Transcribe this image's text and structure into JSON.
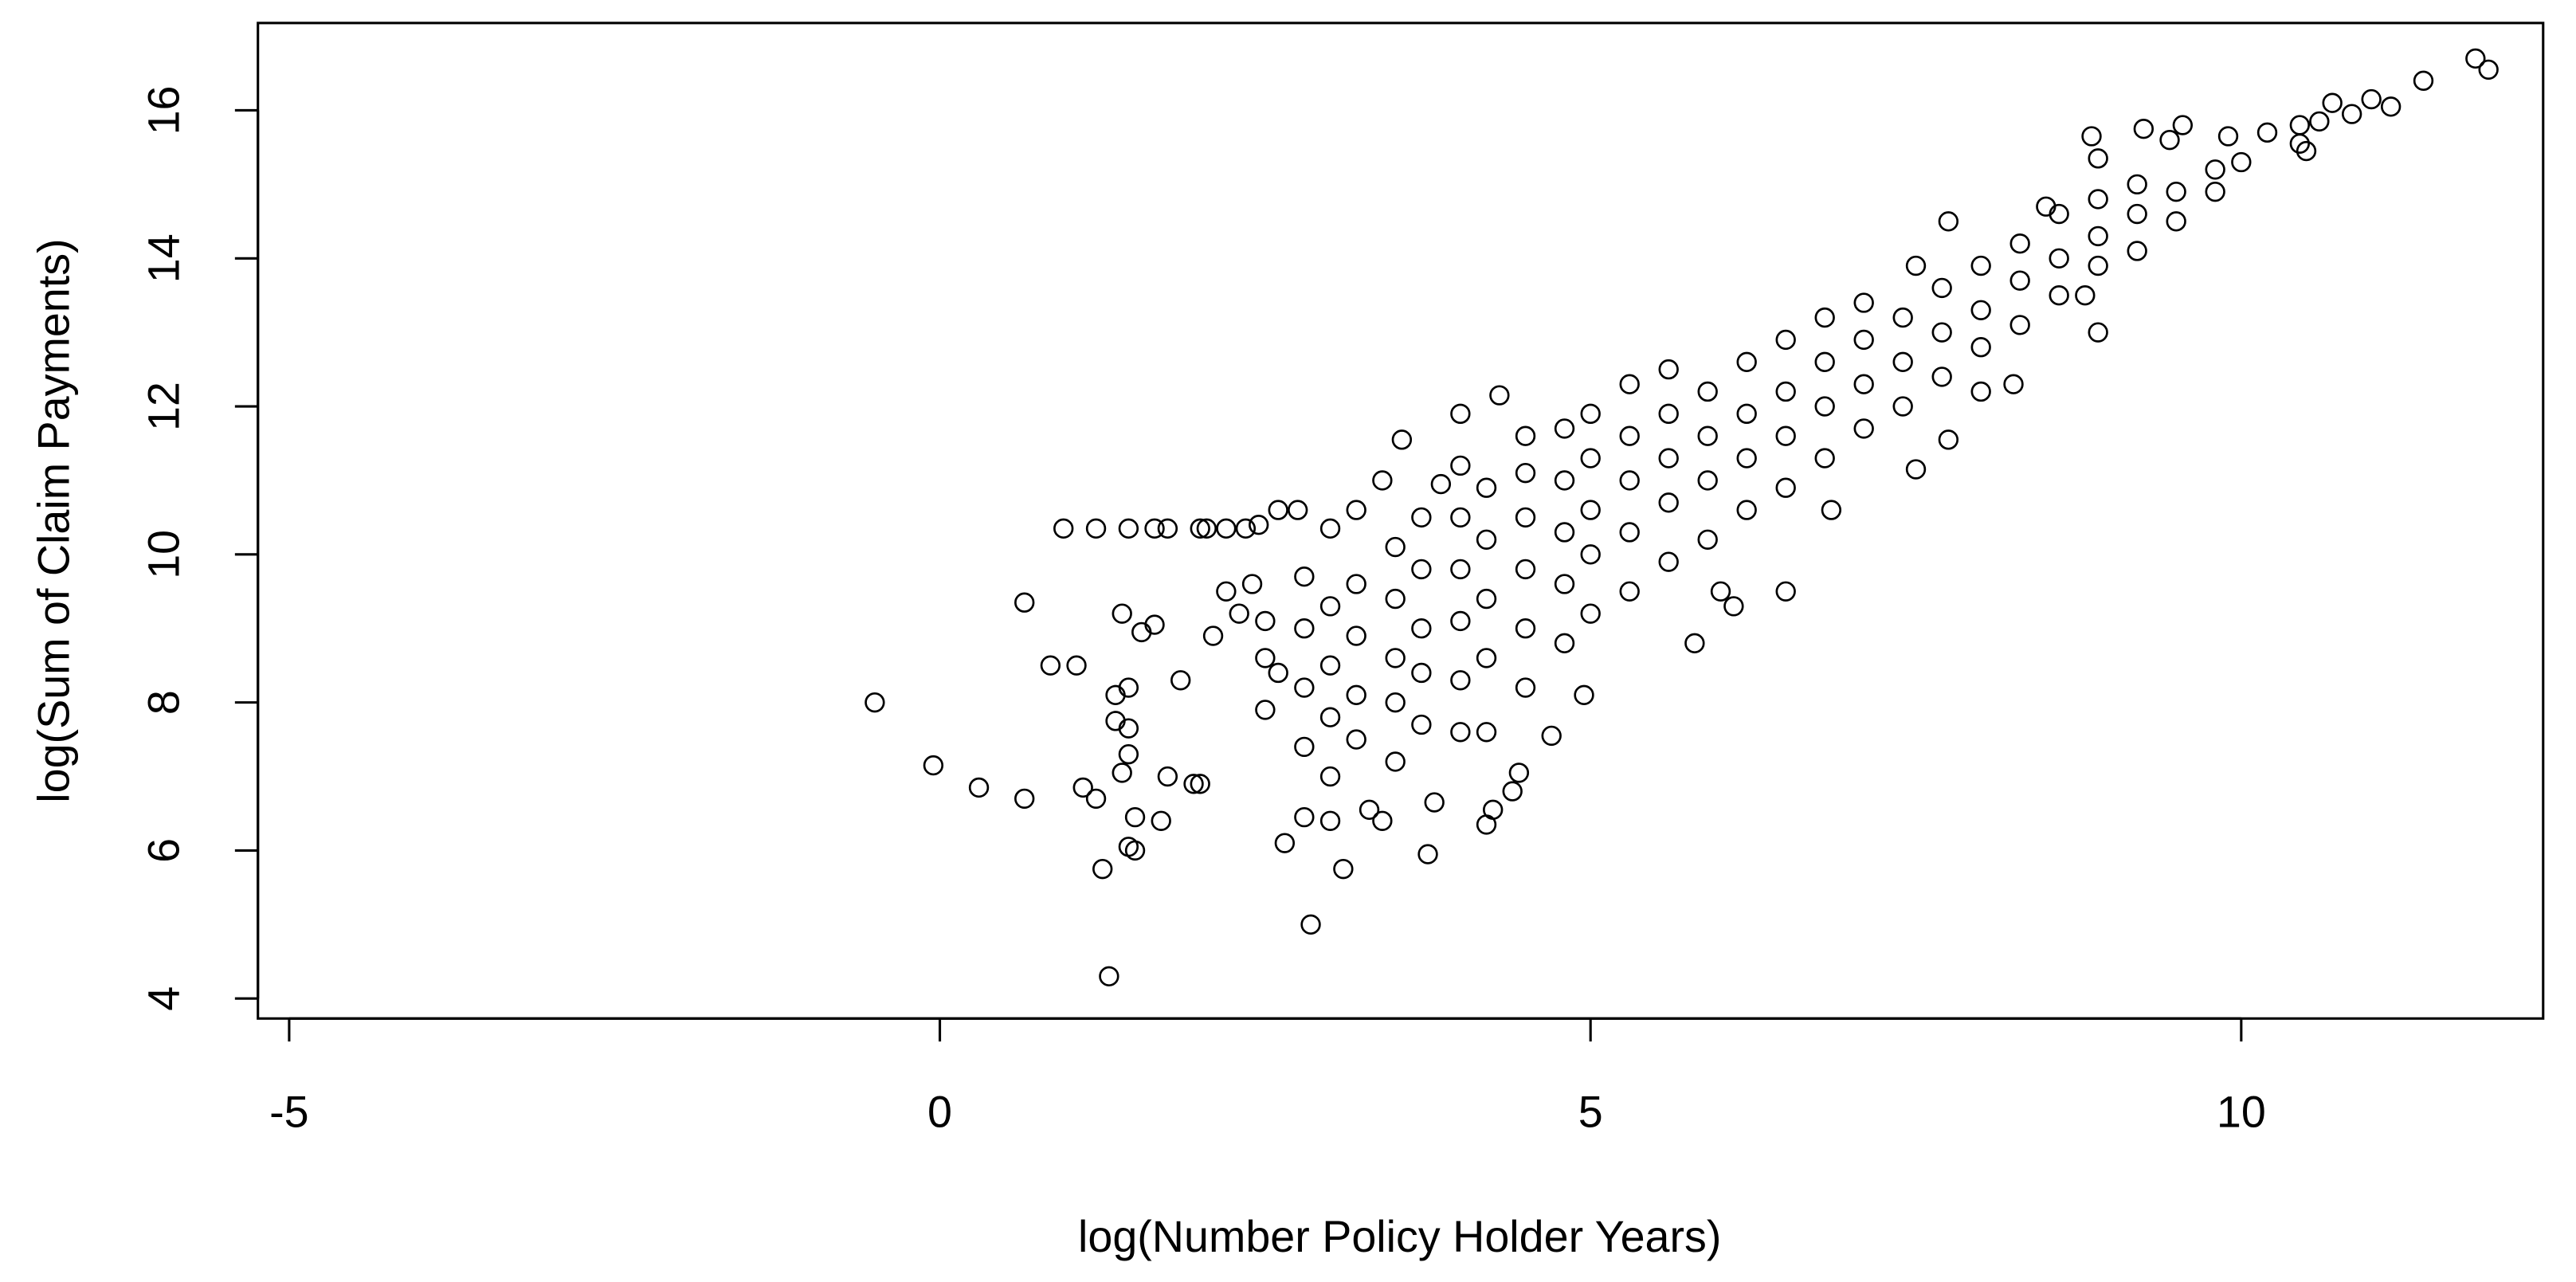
{
  "chart_data": {
    "type": "scatter",
    "x_label": "log(Number Policy Holder Years)",
    "y_label": "log(Sum of Claim Payments)",
    "x": [
      -0.5,
      -0.05,
      0.3,
      0.65,
      0.65,
      0.85,
      1.05,
      0.95,
      1.2,
      1.45,
      1.65,
      1.75,
      2.0,
      2.05,
      2.2,
      2.35,
      2.45,
      2.6,
      2.75,
      3.0,
      3.2,
      1.25,
      1.3,
      1.45,
      1.5,
      1.5,
      1.1,
      1.2,
      1.4,
      1.45,
      1.35,
      1.45,
      1.35,
      1.45,
      1.4,
      1.55,
      1.65,
      1.7,
      1.75,
      1.85,
      1.95,
      2.0,
      2.1,
      2.2,
      2.3,
      2.4,
      2.6,
      2.65,
      2.8,
      2.85,
      3.0,
      3.1,
      3.3,
      3.4,
      3.75,
      3.8,
      3.4,
      3.55,
      3.85,
      4.3,
      4.0,
      4.45,
      4.4,
      4.25,
      4.2,
      4.7,
      4.95,
      4.2,
      6.0,
      6.1,
      6.5,
      5.8,
      6.85,
      7.5,
      7.5,
      7.75,
      8.0,
      8.25,
      8.9,
      8.8,
      8.85,
      8.9,
      9.25,
      9.45,
      9.55,
      9.9,
      10.0,
      10.2,
      10.45,
      10.6,
      10.5,
      10.45,
      10.7,
      10.85,
      11.0,
      11.15,
      11.4,
      11.8,
      11.9,
      7.75,
      8.5,
      2.5,
      2.5,
      2.5,
      2.8,
      2.8,
      2.8,
      2.8,
      3.0,
      3.0,
      3.0,
      3.0,
      3.2,
      3.2,
      3.2,
      3.2,
      3.5,
      3.5,
      3.5,
      3.5,
      3.5,
      3.7,
      3.7,
      3.7,
      3.7,
      3.7,
      4.0,
      4.0,
      4.0,
      4.0,
      4.0,
      4.0,
      4.2,
      4.2,
      4.2,
      4.2,
      4.5,
      4.5,
      4.5,
      4.5,
      4.5,
      4.5,
      4.8,
      4.8,
      4.8,
      4.8,
      4.8,
      5.0,
      5.0,
      5.0,
      5.0,
      5.0,
      5.3,
      5.3,
      5.3,
      5.3,
      5.3,
      5.6,
      5.6,
      5.6,
      5.6,
      5.6,
      5.9,
      5.9,
      5.9,
      5.9,
      6.2,
      6.2,
      6.2,
      6.2,
      6.5,
      6.5,
      6.5,
      6.5,
      6.8,
      6.8,
      6.8,
      6.8,
      7.1,
      7.1,
      7.1,
      7.1,
      7.4,
      7.4,
      7.4,
      7.7,
      7.7,
      7.7,
      8.0,
      8.0,
      8.0,
      8.3,
      8.3,
      8.3,
      8.6,
      8.6,
      8.6,
      8.9,
      8.9,
      8.9,
      9.2,
      9.2,
      9.2,
      9.5,
      9.5,
      9.8,
      9.8
    ],
    "values": [
      8.0,
      7.15,
      6.85,
      6.7,
      9.35,
      8.5,
      8.5,
      10.35,
      10.35,
      10.35,
      10.35,
      10.35,
      10.35,
      10.35,
      10.35,
      10.35,
      10.4,
      10.6,
      10.6,
      10.35,
      10.6,
      5.75,
      4.3,
      6.05,
      6.0,
      6.45,
      6.85,
      6.7,
      7.05,
      7.3,
      7.75,
      7.65,
      8.1,
      8.2,
      9.2,
      8.95,
      9.05,
      6.4,
      7.0,
      8.3,
      6.9,
      6.9,
      8.9,
      9.5,
      9.2,
      9.6,
      8.4,
      6.1,
      6.45,
      5.0,
      6.4,
      5.75,
      6.55,
      6.4,
      5.95,
      6.65,
      11.0,
      11.55,
      10.95,
      12.15,
      11.9,
      7.05,
      6.8,
      6.55,
      6.35,
      7.55,
      8.1,
      7.6,
      9.5,
      9.3,
      9.5,
      8.8,
      10.6,
      11.15,
      13.9,
      11.55,
      12.2,
      12.3,
      13.0,
      13.5,
      15.65,
      15.35,
      15.75,
      15.6,
      15.8,
      15.65,
      15.3,
      15.7,
      15.8,
      15.85,
      15.45,
      15.55,
      16.1,
      15.95,
      16.15,
      16.05,
      16.4,
      16.7,
      16.55,
      14.5,
      14.7,
      7.9,
      8.6,
      9.1,
      7.4,
      8.2,
      9.0,
      9.7,
      7.0,
      7.8,
      8.5,
      9.3,
      7.5,
      8.1,
      8.9,
      9.6,
      7.2,
      8.0,
      8.6,
      9.4,
      10.1,
      7.7,
      8.4,
      9.0,
      9.8,
      10.5,
      7.6,
      8.3,
      9.1,
      9.8,
      10.5,
      11.2,
      8.6,
      9.4,
      10.2,
      10.9,
      8.2,
      9.0,
      9.8,
      10.5,
      11.1,
      11.6,
      8.8,
      9.6,
      10.3,
      11.0,
      11.7,
      9.2,
      10.0,
      10.6,
      11.3,
      11.9,
      9.5,
      10.3,
      11.0,
      11.6,
      12.3,
      9.9,
      10.7,
      11.3,
      11.9,
      12.5,
      10.2,
      11.0,
      11.6,
      12.2,
      10.6,
      11.3,
      11.9,
      12.6,
      10.9,
      11.6,
      12.2,
      12.9,
      11.3,
      12.0,
      12.6,
      13.2,
      11.7,
      12.3,
      12.9,
      13.4,
      12.0,
      12.6,
      13.2,
      12.4,
      13.0,
      13.6,
      12.8,
      13.3,
      13.9,
      13.1,
      13.7,
      14.2,
      13.5,
      14.0,
      14.6,
      13.9,
      14.3,
      14.8,
      14.1,
      14.6,
      15.0,
      14.5,
      14.9,
      14.9,
      15.2
    ],
    "color": "#000000",
    "xlim": [
      -5.24,
      12.32
    ],
    "ylim": [
      3.73,
      17.18
    ],
    "xticks": [
      -5,
      0,
      5,
      10
    ],
    "yticks": [
      4,
      6,
      8,
      10,
      12,
      14,
      16
    ]
  }
}
